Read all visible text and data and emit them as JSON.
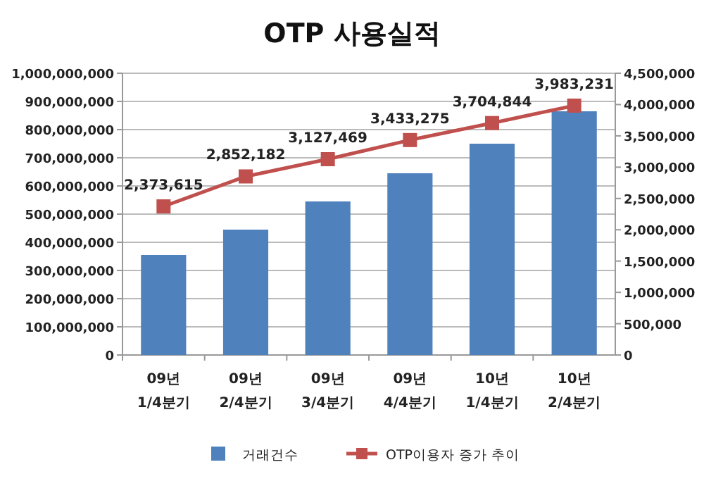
{
  "chart_data": {
    "type": "bar",
    "title": "OTP 사용실적",
    "categories": [
      "09년 1/4분기",
      "09년 2/4분기",
      "09년 3/4분기",
      "09년 4/4분기",
      "10년 1/4분기",
      "10년 2/4분기"
    ],
    "series": [
      {
        "name": "거래건수",
        "color": "#4f81bd",
        "values": [
          355000000,
          445000000,
          545000000,
          645000000,
          750000000,
          865000000
        ]
      },
      {
        "name": "OTP이용자 증가 추이",
        "type": "line",
        "axis": "y2",
        "color": "#c0504d",
        "marker": "square",
        "values": [
          2373615,
          2852182,
          3127469,
          3433275,
          3704844,
          3983231
        ],
        "value_labels": [
          "2,373,615",
          "2,852,182",
          "3,127,469",
          "3,433,275",
          "3,704,844",
          "3,983,231"
        ]
      }
    ],
    "ylim": [
      0,
      1000000000
    ],
    "yticks": [
      {
        "value": 0,
        "label": "0"
      },
      {
        "value": 100000000,
        "label": "100,000,000"
      },
      {
        "value": 200000000,
        "label": "200,000,000"
      },
      {
        "value": 300000000,
        "label": "300,000,000"
      },
      {
        "value": 400000000,
        "label": "400,000,000"
      },
      {
        "value": 500000000,
        "label": "500,000,000"
      },
      {
        "value": 600000000,
        "label": "600,000,000"
      },
      {
        "value": 700000000,
        "label": "700,000,000"
      },
      {
        "value": 800000000,
        "label": "800,000,000"
      },
      {
        "value": 900000000,
        "label": "900,000,000"
      },
      {
        "value": 1000000000,
        "label": "1,000,000,000"
      }
    ],
    "y2lim": [
      0,
      4500000
    ],
    "y2ticks": [
      {
        "value": 0,
        "label": "0"
      },
      {
        "value": 500000,
        "label": "500,000"
      },
      {
        "value": 1000000,
        "label": "1,000,000"
      },
      {
        "value": 1500000,
        "label": "1,500,000"
      },
      {
        "value": 2000000,
        "label": "2,000,000"
      },
      {
        "value": 2500000,
        "label": "2,500,000"
      },
      {
        "value": 3000000,
        "label": "3,000,000"
      },
      {
        "value": 3500000,
        "label": "3,500,000"
      },
      {
        "value": 4000000,
        "label": "4,000,000"
      },
      {
        "value": 4500000,
        "label": "4,500,000"
      }
    ],
    "grid": "y",
    "legend": "bottom"
  }
}
